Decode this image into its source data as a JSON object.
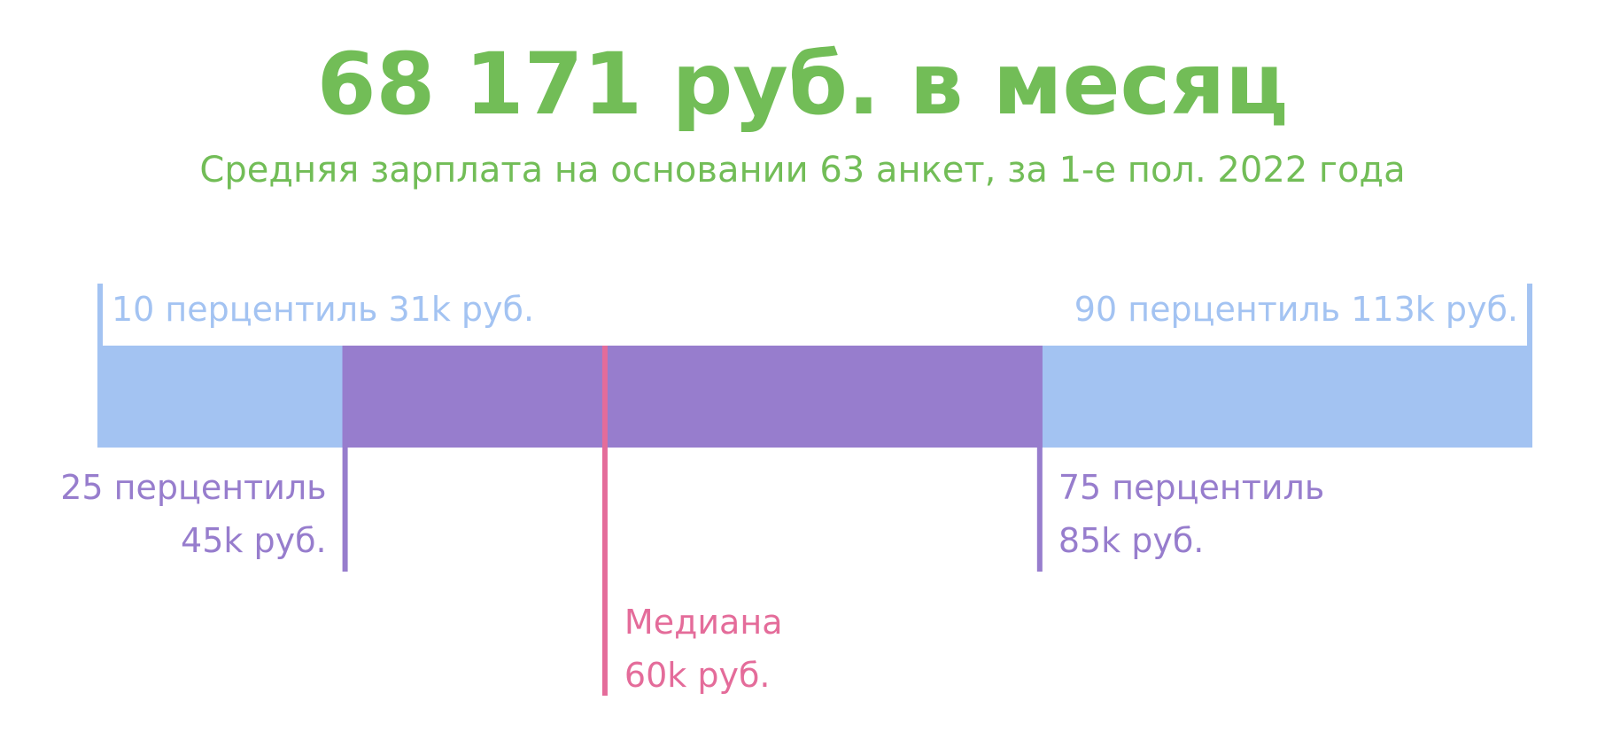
{
  "headline": "68 171 руб. в месяц",
  "subtitle": "Средняя зарплата на основании 63 анкет, за 1-е пол. 2022 года",
  "colors": {
    "headline": "#72bd57",
    "outer_range": "#a3c3f2",
    "inner_range": "#977dcd",
    "median": "#e46c9a"
  },
  "chart_data": {
    "type": "range-bar",
    "unit": "k руб.",
    "percentiles": {
      "p10": 31,
      "p25": 45,
      "median": 60,
      "p75": 85,
      "p90": 113
    },
    "labels": {
      "p10": "10 перцентиль 31k руб.",
      "p90": "90 перцентиль 113k руб.",
      "p25": [
        "25 перцентиль",
        "45k руб."
      ],
      "p75": [
        "75 перцентиль",
        "85k руб."
      ],
      "median": [
        "Медиана",
        "60k руб."
      ]
    }
  }
}
